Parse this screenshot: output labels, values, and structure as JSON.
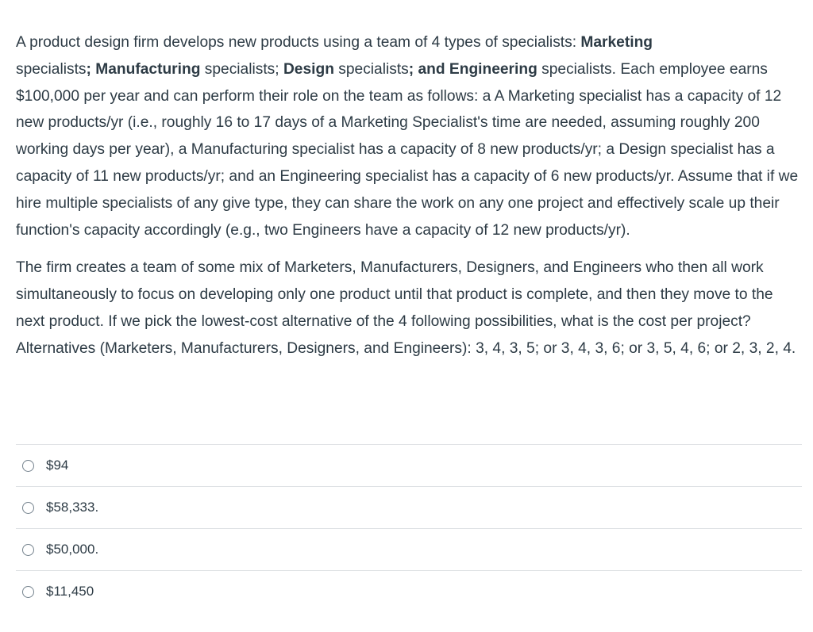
{
  "question": {
    "p1": [
      {
        "t": "A product design firm develops new products using a team of 4 types of specialists: ",
        "b": false
      },
      {
        "t": "Marketing",
        "b": true
      },
      {
        "t": " specialists",
        "b": false
      },
      {
        "t": "; Manufacturing",
        "b": true
      },
      {
        "t": " specialists; ",
        "b": false
      },
      {
        "t": "Design",
        "b": true
      },
      {
        "t": " specialists",
        "b": false
      },
      {
        "t": "; and Engineering",
        "b": true
      },
      {
        "t": " specialists. Each employee earns $100,000 per year and can perform their role on the team as follows: a A Marketing specialist has a capacity of 12 new products/yr (i.e., roughly 16 to 17 days of a Marketing Specialist's time are needed, assuming roughly 200 working days per year), a Manufacturing specialist has a capacity of 8 new products/yr; a Design specialist has a capacity of 11  new products/yr; and an Engineering specialist has a capacity of 6 new products/yr. Assume that if we hire multiple specialists of any give type, they can share the work on any one project and effectively scale up their function's capacity accordingly (e.g., two Engineers have a capacity of 12 new products/yr).",
        "b": false
      }
    ],
    "p2": "The firm creates a team of some mix of Marketers, Manufacturers, Designers, and Engineers who then all work simultaneously to focus on developing only one product until that product is complete, and then they move to the next product. If we pick the lowest-cost alternative of the 4 following possibilities, what is the cost per project? Alternatives (Marketers, Manufacturers, Designers, and Engineers): 3, 4, 3, 5; or 3, 4, 3, 6; or 3, 5, 4, 6; or 2, 3, 2, 4."
  },
  "answers": [
    "$94",
    "$58,333.",
    "$50,000.",
    "$11,450"
  ]
}
